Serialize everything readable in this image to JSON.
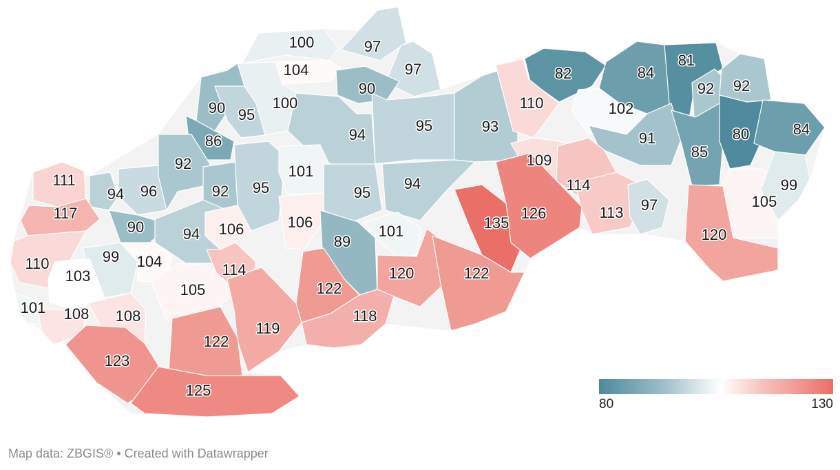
{
  "map": {
    "legend": {
      "min": "80",
      "max": "130"
    },
    "footer": "Map data: ZBGIS® • Created with Datawrapper",
    "colors": {
      "low": "#4e8a9b",
      "mid": "#ffffff",
      "high": "#ea6f67"
    },
    "regions": [
      {
        "value": 100
      },
      {
        "value": 97
      },
      {
        "value": 97
      },
      {
        "value": 104
      },
      {
        "value": 90
      },
      {
        "value": 100
      },
      {
        "value": 90
      },
      {
        "value": 95
      },
      {
        "value": 86
      },
      {
        "value": 94
      },
      {
        "value": 95
      },
      {
        "value": 93
      },
      {
        "value": 82
      },
      {
        "value": 84
      },
      {
        "value": 81
      },
      {
        "value": 92
      },
      {
        "value": 92
      },
      {
        "value": 110
      },
      {
        "value": 102
      },
      {
        "value": 91
      },
      {
        "value": 85
      },
      {
        "value": 80
      },
      {
        "value": 84
      },
      {
        "value": 109
      },
      {
        "value": 114
      },
      {
        "value": 113
      },
      {
        "value": 97
      },
      {
        "value": 105
      },
      {
        "value": 99
      },
      {
        "value": 120
      },
      {
        "value": 111
      },
      {
        "value": 94
      },
      {
        "value": 96
      },
      {
        "value": 92
      },
      {
        "value": 92
      },
      {
        "value": 95
      },
      {
        "value": 101
      },
      {
        "value": 95
      },
      {
        "value": 94
      },
      {
        "value": 117
      },
      {
        "value": 90
      },
      {
        "value": 94
      },
      {
        "value": 106
      },
      {
        "value": 106
      },
      {
        "value": 89
      },
      {
        "value": 101
      },
      {
        "value": 135
      },
      {
        "value": 126
      },
      {
        "value": 110
      },
      {
        "value": 99
      },
      {
        "value": 104
      },
      {
        "value": 103
      },
      {
        "value": 114
      },
      {
        "value": 105
      },
      {
        "value": 122
      },
      {
        "value": 120
      },
      {
        "value": 122
      },
      {
        "value": 101
      },
      {
        "value": 108
      },
      {
        "value": 108
      },
      {
        "value": 119
      },
      {
        "value": 118
      },
      {
        "value": 123
      },
      {
        "value": 122
      },
      {
        "value": 125
      }
    ]
  }
}
